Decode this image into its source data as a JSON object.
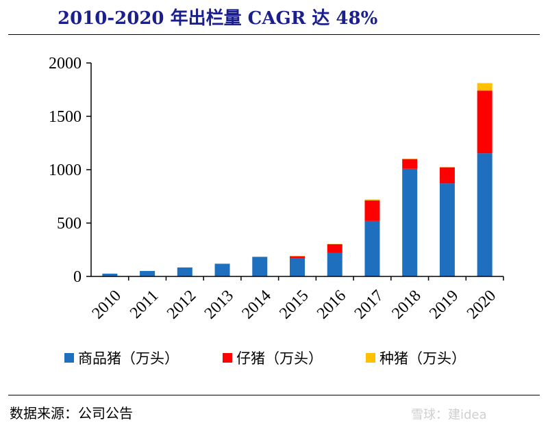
{
  "header": {
    "title": "2010-2020 年出栏量 CAGR 达 48%"
  },
  "footer": {
    "source": "数据来源：公司公告",
    "watermark": "雪球：建idea"
  },
  "chart_data": {
    "type": "bar",
    "stacked": true,
    "title": "2010-2020 年出栏量 CAGR 达 48%",
    "xlabel": "",
    "ylabel": "",
    "ylim": [
      0,
      2000
    ],
    "yticks": [
      0,
      500,
      1000,
      1500,
      2000
    ],
    "categories": [
      "2010",
      "2011",
      "2012",
      "2013",
      "2014",
      "2015",
      "2016",
      "2017",
      "2018",
      "2019",
      "2020"
    ],
    "series": [
      {
        "name": "商品猪（万头）",
        "color": "#1f6fbf",
        "values": [
          26,
          51,
          84,
          116,
          181,
          168,
          221,
          520,
          1008,
          871,
          1153
        ]
      },
      {
        "name": "仔猪（万头）",
        "color": "#ff0000",
        "values": [
          0,
          0,
          0,
          3,
          3,
          21,
          81,
          192,
          91,
          151,
          588
        ]
      },
      {
        "name": "种猪（万头）",
        "color": "#ffc000",
        "values": [
          0,
          0,
          0,
          0,
          0,
          2,
          3,
          10,
          3,
          2,
          70
        ]
      }
    ],
    "legend_position": "bottom",
    "grid": false
  }
}
